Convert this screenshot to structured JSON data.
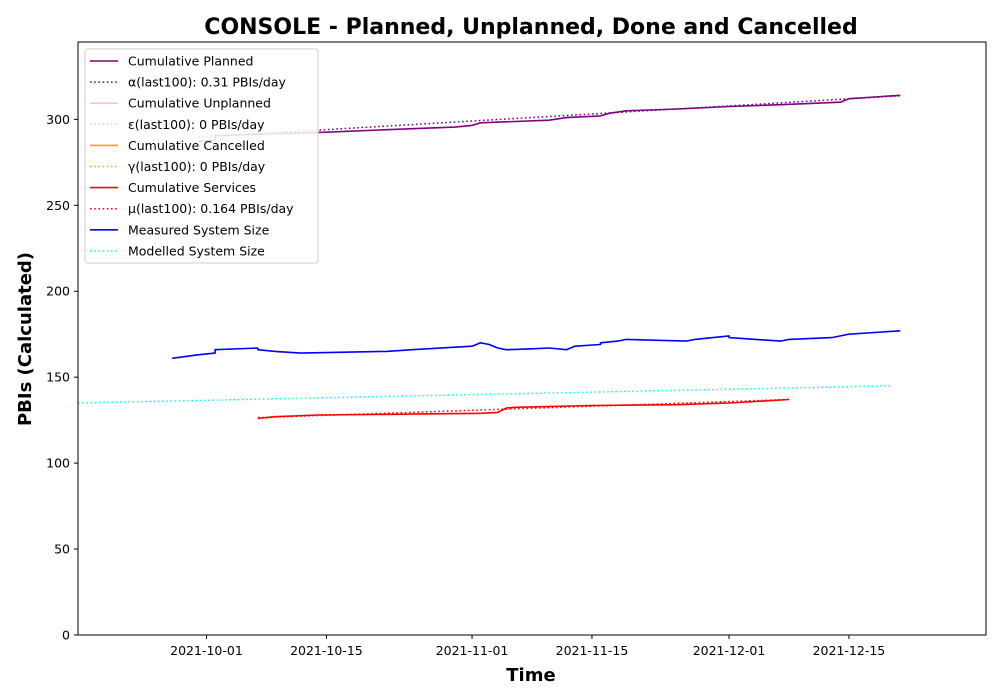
{
  "chart_data": {
    "type": "line",
    "title": "CONSOLE - Planned, Unplanned, Done  and Cancelled",
    "xlabel": "Time",
    "ylabel": "PBIs (Calculated)",
    "xlim": [
      "2021-09-16",
      "2021-12-31"
    ],
    "ylim": [
      0,
      345
    ],
    "x_ticks": [
      "2021-10-01",
      "2021-10-15",
      "2021-11-01",
      "2021-11-15",
      "2021-12-01",
      "2021-12-15"
    ],
    "y_ticks": [
      0,
      50,
      100,
      150,
      200,
      250,
      300
    ],
    "grid": false,
    "legend_position": "top-left",
    "series": [
      {
        "name": "Cumulative Planned",
        "color": "#800080",
        "style": "solid",
        "points": [
          [
            "2021-09-30",
            287
          ],
          [
            "2021-10-02",
            288
          ],
          [
            "2021-10-02",
            290.5
          ],
          [
            "2021-10-08",
            291.5
          ],
          [
            "2021-10-15",
            292.5
          ],
          [
            "2021-10-22",
            294
          ],
          [
            "2021-10-30",
            295.5
          ],
          [
            "2021-11-01",
            296.5
          ],
          [
            "2021-11-02",
            298
          ],
          [
            "2021-11-10",
            299.5
          ],
          [
            "2021-11-12",
            301
          ],
          [
            "2021-11-16",
            302
          ],
          [
            "2021-11-17",
            303.5
          ],
          [
            "2021-11-19",
            305
          ],
          [
            "2021-11-25",
            306
          ],
          [
            "2021-12-01",
            307.5
          ],
          [
            "2021-12-07",
            308.5
          ],
          [
            "2021-12-14",
            310
          ],
          [
            "2021-12-15",
            312
          ],
          [
            "2021-12-18",
            313
          ],
          [
            "2021-12-21",
            314
          ]
        ]
      },
      {
        "name": "α(last100): 0.31 PBIs/day",
        "color": "#800080",
        "style": "dotted",
        "points": [
          [
            "2021-09-30",
            289.6
          ],
          [
            "2021-12-21",
            313.7
          ]
        ]
      },
      {
        "name": "Cumulative Unplanned",
        "color": "#ffc0cb",
        "style": "solid",
        "points": []
      },
      {
        "name": "ε(last100): 0 PBIs/day",
        "color": "#ffc0cb",
        "style": "dotted",
        "points": []
      },
      {
        "name": "Cumulative Cancelled",
        "color": "#ffa500",
        "style": "solid",
        "points": []
      },
      {
        "name": "γ(last100): 0 PBIs/day",
        "color": "#ffa500",
        "style": "dotted",
        "points": []
      },
      {
        "name": "Cumulative Services",
        "color": "#ff0000",
        "style": "solid",
        "points": [
          [
            "2021-10-07",
            126
          ],
          [
            "2021-10-09",
            127
          ],
          [
            "2021-10-14",
            128
          ],
          [
            "2021-10-25",
            128.5
          ],
          [
            "2021-11-02",
            129
          ],
          [
            "2021-11-04",
            129.5
          ],
          [
            "2021-11-05",
            132
          ],
          [
            "2021-11-06",
            132.5
          ],
          [
            "2021-11-15",
            133.5
          ],
          [
            "2021-11-25",
            134
          ],
          [
            "2021-12-01",
            135
          ],
          [
            "2021-12-08",
            137
          ]
        ]
      },
      {
        "name": "μ(last100): 0.164 PBIs/day",
        "color": "#ff0000",
        "style": "dotted",
        "points": [
          [
            "2021-10-07",
            126.5
          ],
          [
            "2021-12-08",
            137
          ]
        ]
      },
      {
        "name": "Measured System Size",
        "color": "#0000ff",
        "style": "solid",
        "points": [
          [
            "2021-09-27",
            161
          ],
          [
            "2021-09-30",
            163
          ],
          [
            "2021-10-02",
            164
          ],
          [
            "2021-10-02",
            166
          ],
          [
            "2021-10-07",
            167
          ],
          [
            "2021-10-07",
            166
          ],
          [
            "2021-10-09",
            165
          ],
          [
            "2021-10-12",
            164
          ],
          [
            "2021-10-22",
            165
          ],
          [
            "2021-10-25",
            166
          ],
          [
            "2021-11-01",
            168
          ],
          [
            "2021-11-02",
            170
          ],
          [
            "2021-11-03",
            169
          ],
          [
            "2021-11-04",
            167
          ],
          [
            "2021-11-05",
            166
          ],
          [
            "2021-11-08",
            166.5
          ],
          [
            "2021-11-10",
            167
          ],
          [
            "2021-11-12",
            166
          ],
          [
            "2021-11-13",
            168
          ],
          [
            "2021-11-16",
            169
          ],
          [
            "2021-11-16",
            170
          ],
          [
            "2021-11-18",
            171
          ],
          [
            "2021-11-19",
            172
          ],
          [
            "2021-11-26",
            171
          ],
          [
            "2021-11-27",
            172
          ],
          [
            "2021-12-01",
            174
          ],
          [
            "2021-12-01",
            173
          ],
          [
            "2021-12-07",
            171
          ],
          [
            "2021-12-08",
            172
          ],
          [
            "2021-12-13",
            173
          ],
          [
            "2021-12-14",
            174
          ],
          [
            "2021-12-15",
            175
          ],
          [
            "2021-12-18",
            176
          ],
          [
            "2021-12-21",
            177
          ]
        ]
      },
      {
        "name": "Modelled System Size",
        "color": "#00ffff",
        "style": "dotted",
        "points": [
          [
            "2021-09-16",
            135
          ],
          [
            "2021-12-20",
            145
          ]
        ]
      }
    ]
  }
}
